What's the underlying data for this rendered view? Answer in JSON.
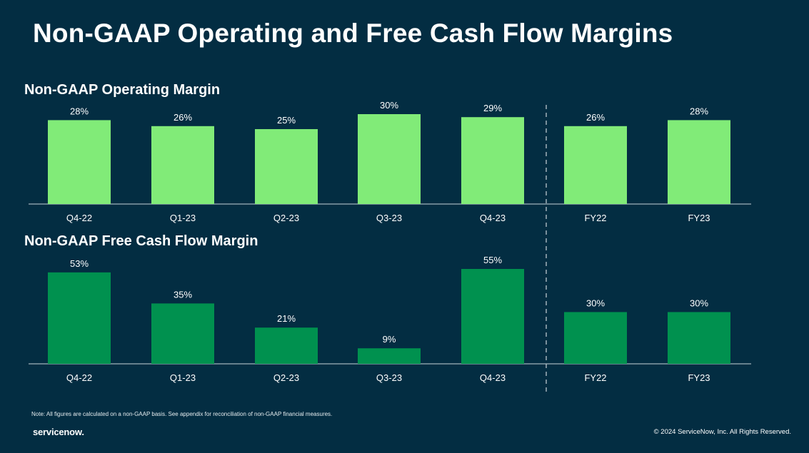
{
  "title": "Non-GAAP Operating and Free Cash Flow Margins",
  "note": "Note: All figures are calculated on a non-GAAP basis. See appendix for reconciliation of non-GAAP financial measures.",
  "logo": "servicenow.",
  "copyright": "© 2024 ServiceNow, Inc. All Rights Reserved.",
  "colors": {
    "background": "#032d42",
    "operating_bar": "#81eb78",
    "fcf_bar": "#00914f",
    "axis": "#c9d3d8"
  },
  "chart_data": [
    {
      "type": "bar",
      "title": "Non-GAAP Operating Margin",
      "categories": [
        "Q4-22",
        "Q1-23",
        "Q2-23",
        "Q3-23",
        "Q4-23",
        "FY22",
        "FY23"
      ],
      "values": [
        28,
        26,
        25,
        30,
        29,
        26,
        28
      ],
      "data_labels": [
        "28%",
        "26%",
        "25%",
        "30%",
        "29%",
        "26%",
        "28%"
      ],
      "ylim": [
        0,
        30
      ],
      "grid": false,
      "separator_after_category": "Q4-23"
    },
    {
      "type": "bar",
      "title": "Non-GAAP Free Cash Flow Margin",
      "categories": [
        "Q4-22",
        "Q1-23",
        "Q2-23",
        "Q3-23",
        "Q4-23",
        "FY22",
        "FY23"
      ],
      "values": [
        53,
        35,
        21,
        9,
        55,
        30,
        30
      ],
      "data_labels": [
        "53%",
        "35%",
        "21%",
        "9%",
        "55%",
        "30%",
        "30%"
      ],
      "ylim": [
        0,
        55
      ],
      "grid": false,
      "separator_after_category": "Q4-23"
    }
  ]
}
